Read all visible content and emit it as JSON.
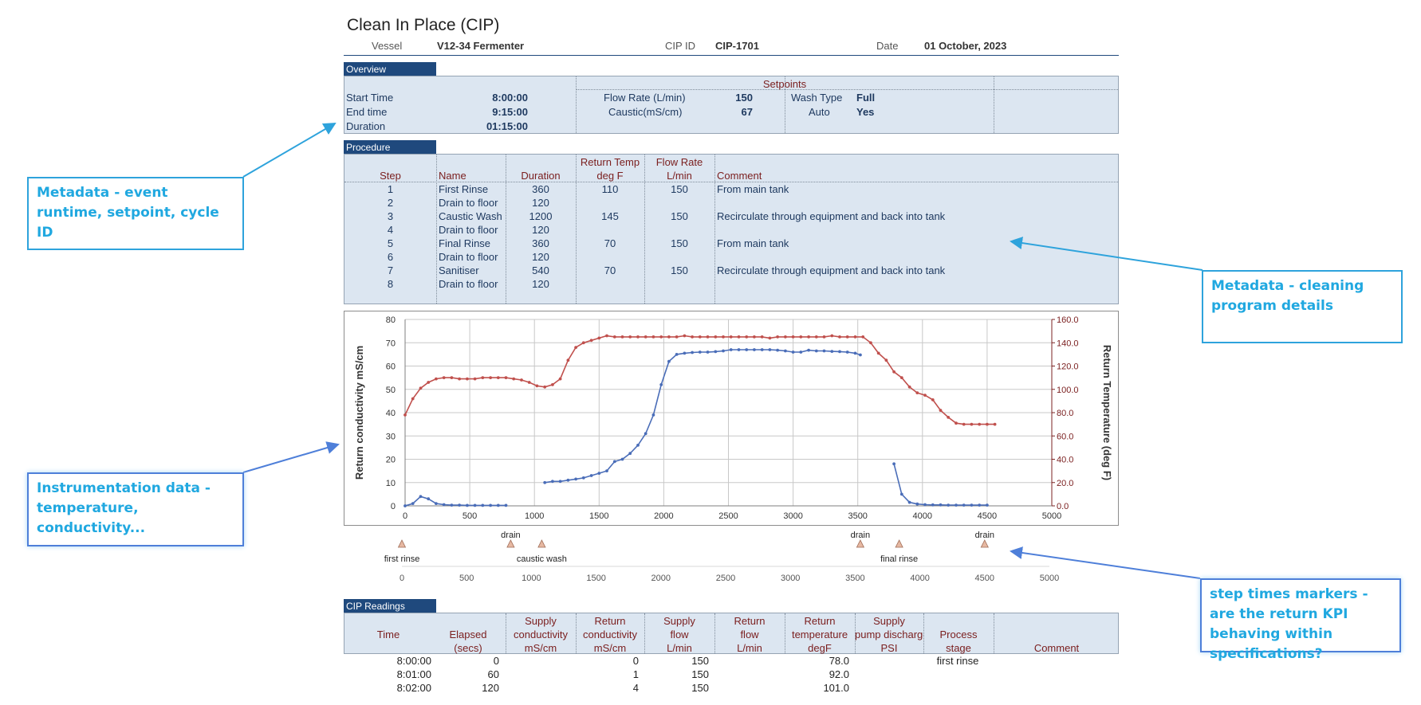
{
  "title": "Clean In Place (CIP)",
  "header": {
    "vessel_label": "Vessel",
    "vessel_value": "V12-34 Fermenter",
    "cipid_label": "CIP ID",
    "cipid_value": "CIP-1701",
    "date_label": "Date",
    "date_value": "01 October, 2023"
  },
  "overview": {
    "tab": "Overview",
    "setpoints_header": "Setpoints",
    "start_label": "Start Time",
    "start_value": "8:00:00",
    "end_label": "End time",
    "end_value": "9:15:00",
    "duration_label": "Duration",
    "duration_value": "01:15:00",
    "flow_label": "Flow Rate (L/min)",
    "flow_value": "150",
    "caustic_label": "Caustic(mS/cm)",
    "caustic_value": "67",
    "washtype_label": "Wash Type",
    "washtype_value": "Full",
    "auto_label": "Auto",
    "auto_value": "Yes"
  },
  "procedure": {
    "tab": "Procedure",
    "headers": {
      "step": "Step",
      "name": "Name",
      "duration": "Duration",
      "return_temp_1": "Return Temp",
      "return_temp_2": "deg F",
      "flow_1": "Flow Rate",
      "flow_2": "L/min",
      "comment": "Comment"
    },
    "rows": [
      {
        "step": "1",
        "name": "First Rinse",
        "duration": "360",
        "temp": "110",
        "flow": "150",
        "comment": "From main tank"
      },
      {
        "step": "2",
        "name": "Drain to floor",
        "duration": "120",
        "temp": "",
        "flow": "",
        "comment": ""
      },
      {
        "step": "3",
        "name": "Caustic Wash",
        "duration": "1200",
        "temp": "145",
        "flow": "150",
        "comment": "Recirculate through equipment and back into tank"
      },
      {
        "step": "4",
        "name": "Drain to floor",
        "duration": "120",
        "temp": "",
        "flow": "",
        "comment": ""
      },
      {
        "step": "5",
        "name": "Final Rinse",
        "duration": "360",
        "temp": "70",
        "flow": "150",
        "comment": "From main tank"
      },
      {
        "step": "6",
        "name": "Drain to floor",
        "duration": "120",
        "temp": "",
        "flow": "",
        "comment": ""
      },
      {
        "step": "7",
        "name": "Sanitiser",
        "duration": "540",
        "temp": "70",
        "flow": "150",
        "comment": "Recirculate through equipment and back into tank"
      },
      {
        "step": "8",
        "name": "Drain to floor",
        "duration": "120",
        "temp": "",
        "flow": "",
        "comment": ""
      }
    ]
  },
  "chart_data": {
    "type": "line",
    "ylabel": "Return conductivity  mS/cm",
    "y2label": "Return Temperature (deg F)",
    "xlim": [
      0,
      5000
    ],
    "ylim": [
      0,
      80
    ],
    "y2lim": [
      0,
      160
    ],
    "x_ticks": [
      "0",
      "500",
      "1000",
      "1500",
      "2000",
      "2500",
      "3000",
      "3500",
      "4000",
      "4500",
      "5000"
    ],
    "y_ticks": [
      "0",
      "10",
      "20",
      "30",
      "40",
      "50",
      "60",
      "70",
      "80"
    ],
    "y2_ticks": [
      "0.0",
      "20.0",
      "40.0",
      "60.0",
      "80.0",
      "100.0",
      "120.0",
      "140.0",
      "160.0"
    ],
    "grid": true,
    "colors": {
      "conductivity": "#4a6db8",
      "temperature": "#c0504d"
    },
    "series": [
      {
        "key": "conductivity",
        "axis": "left",
        "segments": [
          [
            [
              0,
              0
            ],
            [
              60,
              1
            ],
            [
              120,
              4
            ],
            [
              180,
              3
            ],
            [
              240,
              1
            ],
            [
              300,
              0.5
            ],
            [
              360,
              0.3
            ],
            [
              420,
              0.3
            ],
            [
              480,
              0.2
            ],
            [
              540,
              0.2
            ],
            [
              600,
              0.2
            ],
            [
              660,
              0.2
            ],
            [
              720,
              0.2
            ],
            [
              780,
              0.2
            ]
          ],
          [
            [
              1080,
              10
            ],
            [
              1140,
              10.5
            ],
            [
              1200,
              10.5
            ],
            [
              1260,
              11
            ],
            [
              1320,
              11.5
            ],
            [
              1380,
              12
            ],
            [
              1440,
              13
            ],
            [
              1500,
              14
            ],
            [
              1560,
              15
            ],
            [
              1620,
              19
            ],
            [
              1680,
              20
            ],
            [
              1740,
              22.5
            ],
            [
              1800,
              26
            ],
            [
              1860,
              31
            ],
            [
              1920,
              39
            ],
            [
              1980,
              52
            ],
            [
              2040,
              62
            ],
            [
              2100,
              65
            ],
            [
              2160,
              65.5
            ],
            [
              2220,
              65.8
            ],
            [
              2280,
              66
            ],
            [
              2340,
              66
            ],
            [
              2400,
              66.2
            ],
            [
              2460,
              66.5
            ],
            [
              2520,
              67
            ],
            [
              2580,
              67
            ],
            [
              2640,
              67
            ],
            [
              2700,
              67
            ],
            [
              2760,
              67
            ],
            [
              2820,
              67
            ],
            [
              2880,
              66.8
            ],
            [
              2940,
              66.5
            ],
            [
              3000,
              66
            ],
            [
              3060,
              66
            ],
            [
              3120,
              66.8
            ],
            [
              3180,
              66.5
            ],
            [
              3240,
              66.5
            ],
            [
              3300,
              66.3
            ],
            [
              3360,
              66.2
            ],
            [
              3420,
              66
            ],
            [
              3480,
              65.5
            ],
            [
              3520,
              64.8
            ]
          ],
          [
            [
              3780,
              18
            ],
            [
              3840,
              5
            ],
            [
              3900,
              1.5
            ],
            [
              3960,
              0.8
            ],
            [
              4020,
              0.5
            ],
            [
              4080,
              0.4
            ],
            [
              4140,
              0.4
            ],
            [
              4200,
              0.3
            ],
            [
              4260,
              0.3
            ],
            [
              4320,
              0.3
            ],
            [
              4380,
              0.3
            ],
            [
              4440,
              0.3
            ],
            [
              4500,
              0.3
            ]
          ]
        ]
      },
      {
        "key": "temperature",
        "axis": "right",
        "segments": [
          [
            [
              0,
              78
            ],
            [
              60,
              92
            ],
            [
              120,
              101
            ],
            [
              180,
              106
            ],
            [
              240,
              109
            ],
            [
              300,
              110
            ],
            [
              360,
              110
            ],
            [
              420,
              109
            ],
            [
              480,
              109
            ],
            [
              540,
              109
            ],
            [
              600,
              110
            ],
            [
              660,
              110
            ],
            [
              720,
              110
            ],
            [
              780,
              110
            ],
            [
              840,
              109
            ],
            [
              900,
              108
            ],
            [
              960,
              106
            ],
            [
              1020,
              103
            ],
            [
              1080,
              102
            ],
            [
              1140,
              104
            ],
            [
              1200,
              109
            ],
            [
              1260,
              125
            ],
            [
              1320,
              136
            ],
            [
              1380,
              140
            ],
            [
              1440,
              142
            ],
            [
              1500,
              144
            ],
            [
              1560,
              146
            ],
            [
              1620,
              145
            ],
            [
              1680,
              145
            ],
            [
              1740,
              145
            ],
            [
              1800,
              145
            ],
            [
              1860,
              145
            ],
            [
              1920,
              145
            ],
            [
              1980,
              145
            ],
            [
              2040,
              145
            ],
            [
              2100,
              145
            ],
            [
              2160,
              146
            ],
            [
              2220,
              145
            ],
            [
              2280,
              145
            ],
            [
              2340,
              145
            ],
            [
              2400,
              145
            ],
            [
              2460,
              145
            ],
            [
              2520,
              145
            ],
            [
              2580,
              145
            ],
            [
              2640,
              145
            ],
            [
              2700,
              145
            ],
            [
              2760,
              145
            ],
            [
              2820,
              144
            ],
            [
              2880,
              145
            ],
            [
              2940,
              145
            ],
            [
              3000,
              145
            ],
            [
              3060,
              145
            ],
            [
              3120,
              145
            ],
            [
              3180,
              145
            ],
            [
              3240,
              145
            ],
            [
              3300,
              146
            ],
            [
              3360,
              145
            ],
            [
              3420,
              145
            ],
            [
              3480,
              145
            ],
            [
              3540,
              145
            ],
            [
              3600,
              140
            ],
            [
              3660,
              131
            ],
            [
              3720,
              125
            ],
            [
              3780,
              115
            ],
            [
              3840,
              110
            ],
            [
              3900,
              102
            ],
            [
              3960,
              97
            ],
            [
              4020,
              95
            ],
            [
              4080,
              91
            ],
            [
              4140,
              82
            ],
            [
              4200,
              76
            ],
            [
              4260,
              71
            ],
            [
              4320,
              70
            ],
            [
              4380,
              70
            ],
            [
              4440,
              70
            ],
            [
              4500,
              70
            ],
            [
              4560,
              70
            ]
          ]
        ]
      }
    ]
  },
  "markers": {
    "x_ticks": [
      "0",
      "500",
      "1000",
      "1500",
      "2000",
      "2500",
      "3000",
      "3500",
      "4000",
      "4500",
      "5000"
    ],
    "items": [
      {
        "x": 0,
        "label": "first rinse",
        "pos": "below"
      },
      {
        "x": 840,
        "label": "drain",
        "pos": "above"
      },
      {
        "x": 1080,
        "label": "caustic wash",
        "pos": "below"
      },
      {
        "x": 3540,
        "label": "drain",
        "pos": "above"
      },
      {
        "x": 3840,
        "label": "final rinse",
        "pos": "below"
      },
      {
        "x": 4500,
        "label": "drain",
        "pos": "above"
      }
    ]
  },
  "readings": {
    "tab": "CIP Readings",
    "headers": {
      "time": "Time",
      "elapsed_1": "Elapsed",
      "elapsed_2": "(secs)",
      "sc_1": "Supply",
      "sc_2": "conductivity",
      "sc_3": "mS/cm",
      "rc_1": "Return",
      "rc_2": "conductivity",
      "rc_3": "mS/cm",
      "sf_1": "Supply",
      "sf_2": "flow",
      "sf_3": "L/min",
      "rf_1": "Return",
      "rf_2": "flow",
      "rf_3": "L/min",
      "rt_1": "Return",
      "rt_2": "temperature",
      "rt_3": "degF",
      "sp_1": "Supply",
      "sp_2": "pump discharge",
      "sp_3": "PSI",
      "ps_1": "Process",
      "ps_2": "stage",
      "comment": "Comment"
    },
    "rows": [
      {
        "time": "8:00:00",
        "elapsed": "0",
        "rc": "0",
        "sf": "150",
        "rt": "78.0",
        "stage": "first rinse"
      },
      {
        "time": "8:01:00",
        "elapsed": "60",
        "rc": "1",
        "sf": "150",
        "rt": "92.0",
        "stage": ""
      },
      {
        "time": "8:02:00",
        "elapsed": "120",
        "rc": "4",
        "sf": "150",
        "rt": "101.0",
        "stage": ""
      }
    ]
  },
  "callouts": {
    "metadata_runtime": "Metadata - event runtime, setpoint, cycle ID",
    "metadata_program": "Metadata - cleaning program details",
    "instrumentation": "Instrumentation data - temperature, conductivity...",
    "step_markers": "step times markers - are the return KPI behaving within specifications?"
  }
}
